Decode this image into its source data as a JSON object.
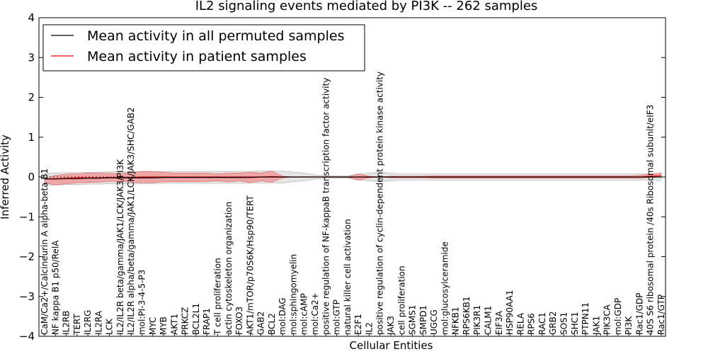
{
  "chart_data": {
    "type": "line",
    "title": "IL2 signaling events mediated by PI3K -- 262 samples",
    "xlabel": "Cellular Entities",
    "ylabel": "Inferred Activity",
    "ylim": [
      -4,
      4
    ],
    "yticks": [
      -4,
      -3,
      -2,
      -1,
      0,
      1,
      2,
      3,
      4
    ],
    "grid": false,
    "legend_position": "top-left",
    "categories": [
      "CaM/Ca2+/Calcineurin A alpha-beta B1",
      "NF kappa B1 p50/RelA",
      "IL2RB",
      "TERT",
      "IL2RG",
      "IL2RA",
      "LCK",
      "IL2/IL2R beta/gamma/JAK1/LCK/JAK3/PI3K",
      "IL2/IL2R alpha/beta/gamma/JAK1/LCK/JAK3/SHC/GAB2",
      "mol:PI-3-4-5-P3",
      "MYC",
      "MYB",
      "AKT1",
      "PRKCZ",
      "BCL2L1",
      "FRAP1",
      "T cell proliferation",
      "actin cytoskeleton organization",
      "FOXO3",
      "AKT1/mTOR/p70S6K/Hsp90/TERT",
      "GAB2",
      "BCL2",
      "mol:DAG",
      "mol:sphingomyelin",
      "mol:cAMP",
      "mol:Ca2+",
      "positive regulation of NF-kappaB transcription factor activity",
      "mol:GTP",
      "natural killer cell activation",
      "E2F1",
      "IL2",
      "positive regulation of cyclin-dependent protein kinase activity",
      "JAK3",
      "cell proliferation",
      "SGMS1",
      "SMPD1",
      "UGCG",
      "mol:glucosylceramide",
      "NFKB1",
      "RPS6KB1",
      "PIK3R1",
      "CALM1",
      "EIF3A",
      "HSP90AA1",
      "RELA",
      "RPS6",
      "RAC1",
      "GRB2",
      "SOS1",
      "SHC1",
      "PTPN11",
      "JAK1",
      "PIK3CA",
      "mol:GDP",
      "PI3K",
      "Rac1/GDP",
      "40S S6 ribosomal protein /40s Ribosomal subunit/eIF3",
      "Rac1/GTP"
    ],
    "series": [
      {
        "name": "Mean activity in all permuted samples",
        "color": "#000000",
        "values": [
          -0.05,
          -0.05,
          -0.04,
          -0.04,
          -0.03,
          -0.03,
          -0.02,
          -0.02,
          -0.02,
          -0.02,
          -0.02,
          -0.01,
          -0.01,
          -0.01,
          -0.01,
          -0.01,
          -0.01,
          -0.01,
          -0.01,
          -0.01,
          0.0,
          0.0,
          0.0,
          0.0,
          0.0,
          0.0,
          0.0,
          0.0,
          0.0,
          0.0,
          0.0,
          0.0,
          0.0,
          0.0,
          0.0,
          0.0,
          0.0,
          0.0,
          0.0,
          0.0,
          0.0,
          0.0,
          0.0,
          0.0,
          0.0,
          0.0,
          0.0,
          0.0,
          0.0,
          0.0,
          0.0,
          0.0,
          0.0,
          0.0,
          0.0,
          0.0,
          0.0,
          0.0
        ],
        "band_outer": [
          0.15,
          0.15,
          0.15,
          0.15,
          0.15,
          0.15,
          0.15,
          0.15,
          0.15,
          0.15,
          0.15,
          0.15,
          0.15,
          0.15,
          0.15,
          0.15,
          0.15,
          0.15,
          0.15,
          0.15,
          0.15,
          0.15,
          0.15,
          0.12,
          0.1,
          0.05,
          0.03,
          0.03,
          0.03,
          0.08,
          0.1,
          0.12,
          0.1,
          0.08,
          0.08,
          0.08,
          0.08,
          0.08,
          0.08,
          0.08,
          0.08,
          0.08,
          0.08,
          0.08,
          0.08,
          0.08,
          0.08,
          0.08,
          0.08,
          0.08,
          0.08,
          0.08,
          0.08,
          0.08,
          0.08,
          0.08,
          0.08,
          0.08
        ]
      },
      {
        "name": "Mean activity in patient samples",
        "color": "#ff0000",
        "values": [
          -0.05,
          -0.04,
          -0.03,
          -0.02,
          -0.02,
          -0.02,
          -0.01,
          -0.01,
          -0.01,
          0.0,
          0.0,
          0.0,
          0.0,
          0.0,
          0.0,
          0.0,
          0.0,
          0.0,
          0.0,
          0.0,
          0.0,
          0.01,
          0.0,
          0.0,
          0.0,
          0.0,
          0.0,
          0.0,
          0.0,
          0.0,
          0.0,
          0.0,
          0.0,
          0.0,
          0.0,
          0.0,
          0.0,
          0.0,
          0.0,
          0.0,
          0.0,
          0.0,
          0.0,
          0.0,
          0.0,
          0.0,
          0.0,
          0.0,
          0.0,
          0.0,
          0.0,
          0.0,
          0.0,
          0.0,
          0.0,
          0.0,
          0.02,
          0.03
        ],
        "band_upper": [
          0.02,
          0.08,
          0.1,
          0.1,
          0.12,
          0.12,
          0.1,
          0.1,
          0.12,
          0.14,
          0.14,
          0.12,
          0.1,
          0.1,
          0.1,
          0.1,
          0.08,
          0.1,
          0.1,
          0.12,
          0.1,
          0.14,
          0.02,
          0.0,
          0.0,
          0.0,
          0.0,
          0.0,
          0.0,
          0.08,
          0.02,
          0.0,
          0.02,
          0.02,
          0.02,
          0.02,
          0.03,
          0.03,
          0.03,
          0.03,
          0.03,
          0.03,
          0.03,
          0.03,
          0.03,
          0.03,
          0.03,
          0.03,
          0.03,
          0.03,
          0.03,
          0.03,
          0.03,
          0.03,
          0.03,
          0.04,
          0.06,
          0.07
        ],
        "band_lower": [
          -0.1,
          -0.16,
          -0.14,
          -0.12,
          -0.12,
          -0.11,
          -0.1,
          -0.1,
          -0.12,
          -0.14,
          -0.14,
          -0.12,
          -0.12,
          -0.12,
          -0.12,
          -0.11,
          -0.1,
          -0.12,
          -0.1,
          -0.14,
          -0.1,
          -0.14,
          -0.02,
          0.0,
          0.0,
          0.0,
          0.0,
          0.0,
          0.0,
          -0.08,
          -0.02,
          0.0,
          -0.02,
          -0.02,
          -0.02,
          -0.02,
          -0.03,
          -0.03,
          -0.03,
          -0.03,
          -0.03,
          -0.03,
          -0.03,
          -0.03,
          -0.03,
          -0.03,
          -0.03,
          -0.03,
          -0.03,
          -0.03,
          -0.03,
          -0.03,
          -0.03,
          -0.03,
          -0.03,
          -0.03,
          -0.03,
          -0.03
        ]
      }
    ]
  }
}
